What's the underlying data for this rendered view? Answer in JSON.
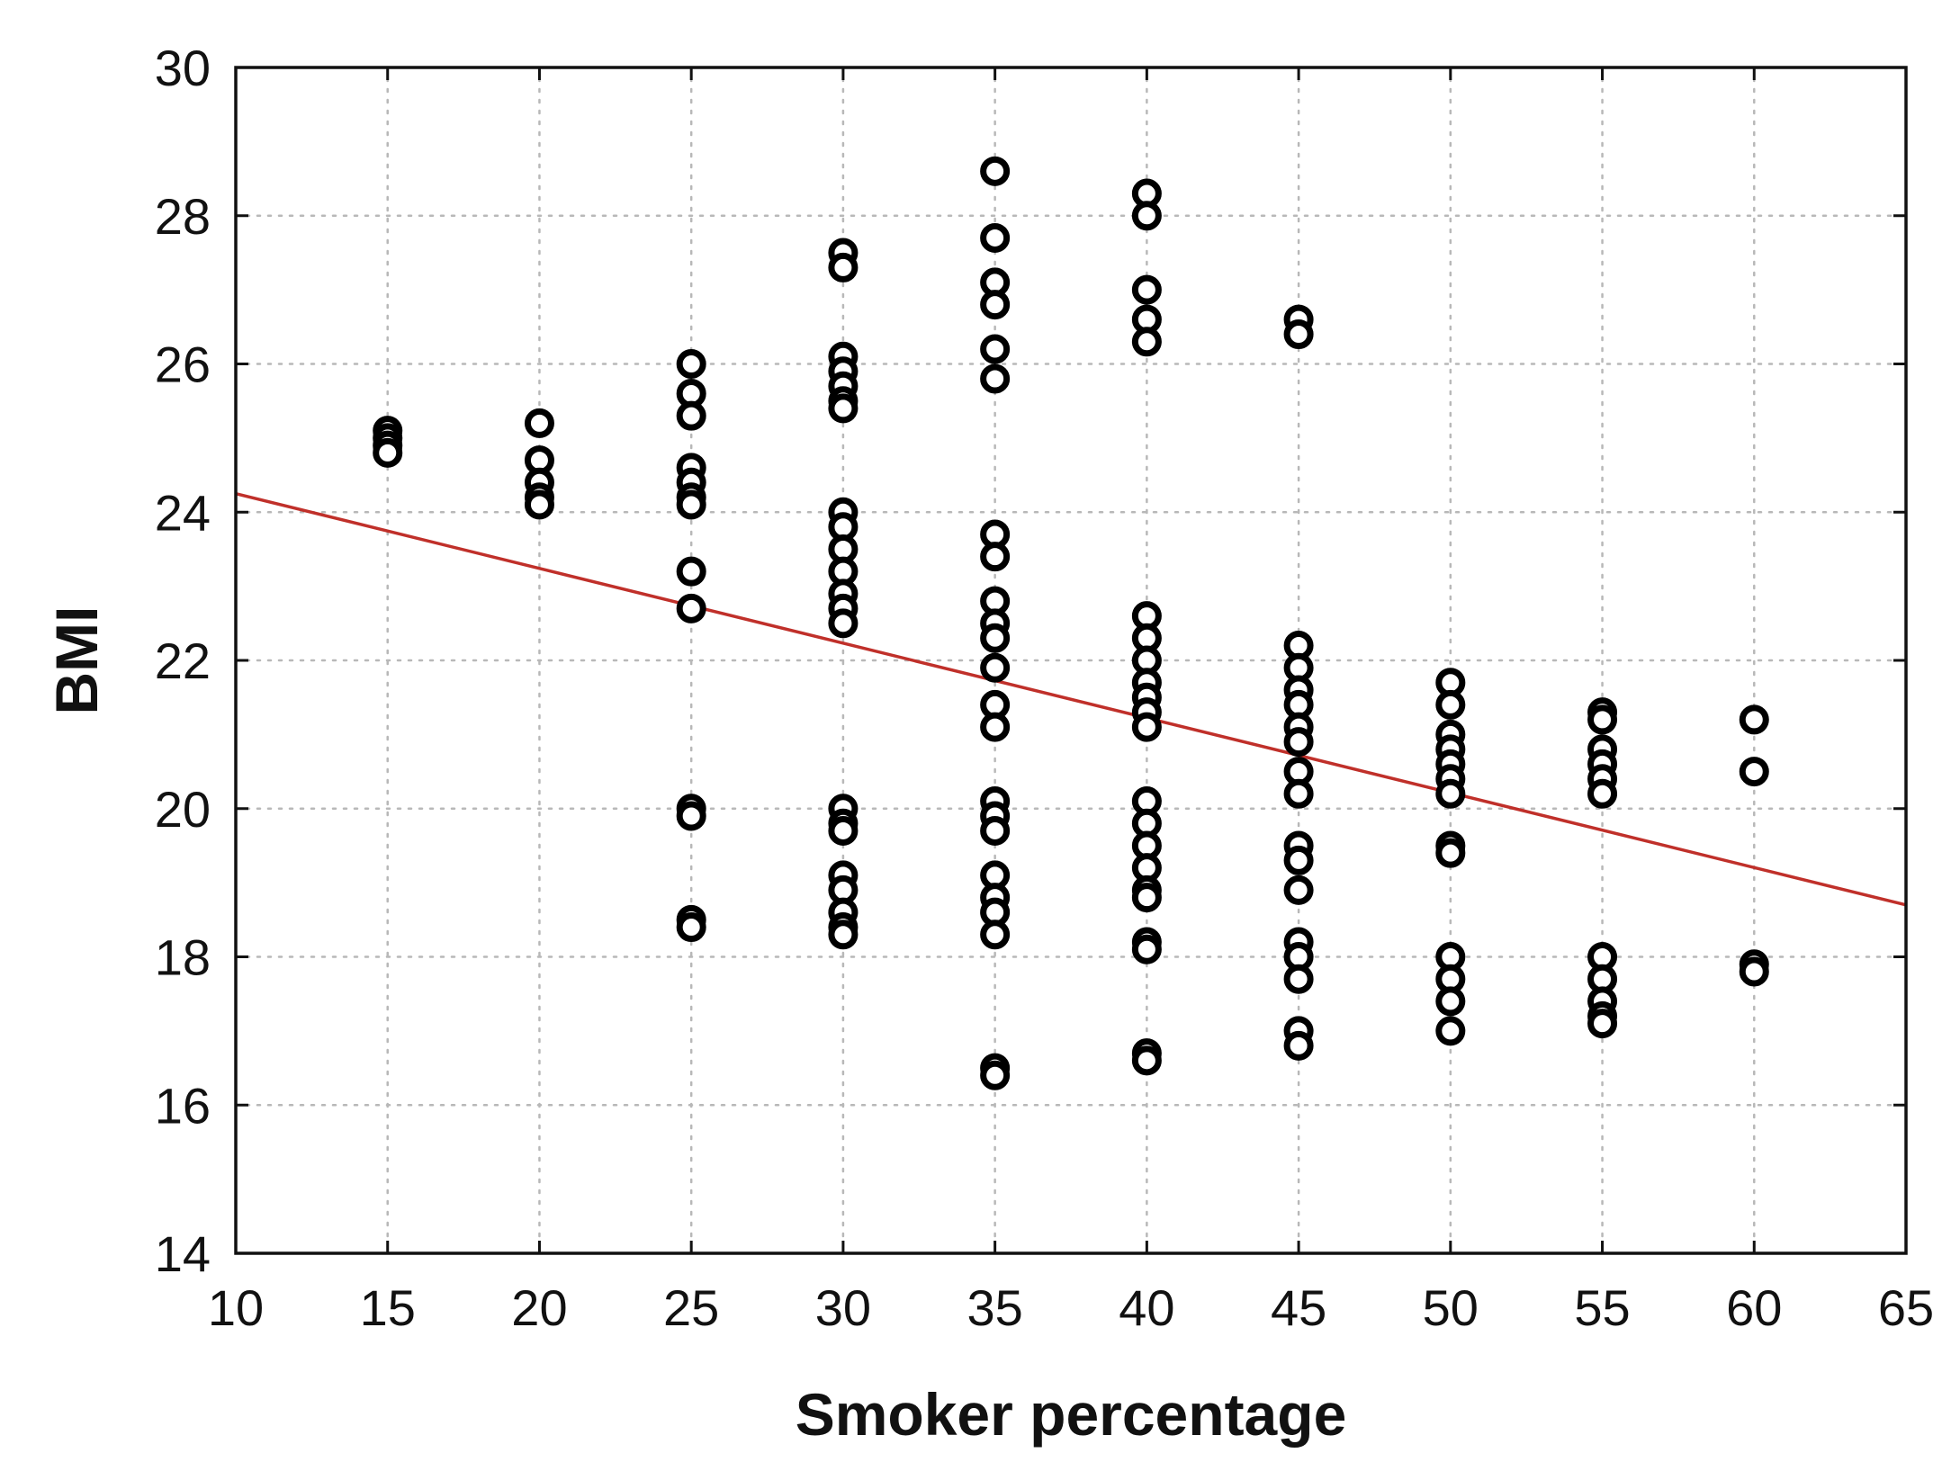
{
  "chart_data": {
    "type": "scatter",
    "title": "",
    "xlabel": "Smoker percentage",
    "ylabel": "BMI",
    "xlim": [
      10,
      65
    ],
    "ylim": [
      14,
      30
    ],
    "xticks": [
      10,
      15,
      20,
      25,
      30,
      35,
      40,
      45,
      50,
      55,
      60,
      65
    ],
    "yticks": [
      14,
      16,
      18,
      20,
      22,
      24,
      26,
      28,
      30
    ],
    "grid": true,
    "colors": {
      "points": "#000000",
      "fit_line": "#c0302a"
    },
    "fit_line": {
      "x": [
        10,
        65
      ],
      "y": [
        24.25,
        18.7
      ]
    },
    "series": [
      {
        "points": [
          [
            15,
            25.1
          ],
          [
            15,
            25.0
          ],
          [
            15,
            24.9
          ],
          [
            15,
            24.8
          ],
          [
            20,
            25.2
          ],
          [
            20,
            24.7
          ],
          [
            20,
            24.4
          ],
          [
            20,
            24.2
          ],
          [
            20,
            24.1
          ],
          [
            25,
            26.0
          ],
          [
            25,
            25.6
          ],
          [
            25,
            25.3
          ],
          [
            25,
            24.6
          ],
          [
            25,
            24.4
          ],
          [
            25,
            24.2
          ],
          [
            25,
            24.1
          ],
          [
            25,
            23.2
          ],
          [
            25,
            22.7
          ],
          [
            25,
            20.0
          ],
          [
            25,
            19.9
          ],
          [
            25,
            18.5
          ],
          [
            25,
            18.4
          ],
          [
            30,
            27.5
          ],
          [
            30,
            27.3
          ],
          [
            30,
            26.1
          ],
          [
            30,
            25.9
          ],
          [
            30,
            25.7
          ],
          [
            30,
            25.5
          ],
          [
            30,
            25.4
          ],
          [
            30,
            24.0
          ],
          [
            30,
            23.8
          ],
          [
            30,
            23.5
          ],
          [
            30,
            23.2
          ],
          [
            30,
            22.9
          ],
          [
            30,
            22.7
          ],
          [
            30,
            22.5
          ],
          [
            30,
            20.0
          ],
          [
            30,
            19.8
          ],
          [
            30,
            19.7
          ],
          [
            30,
            19.1
          ],
          [
            30,
            18.9
          ],
          [
            30,
            18.6
          ],
          [
            30,
            18.4
          ],
          [
            30,
            18.3
          ],
          [
            35,
            28.6
          ],
          [
            35,
            27.7
          ],
          [
            35,
            27.1
          ],
          [
            35,
            26.8
          ],
          [
            35,
            26.2
          ],
          [
            35,
            25.8
          ],
          [
            35,
            23.7
          ],
          [
            35,
            23.4
          ],
          [
            35,
            22.8
          ],
          [
            35,
            22.5
          ],
          [
            35,
            22.3
          ],
          [
            35,
            21.9
          ],
          [
            35,
            21.4
          ],
          [
            35,
            21.1
          ],
          [
            35,
            20.1
          ],
          [
            35,
            19.9
          ],
          [
            35,
            19.7
          ],
          [
            35,
            19.1
          ],
          [
            35,
            18.8
          ],
          [
            35,
            18.6
          ],
          [
            35,
            18.3
          ],
          [
            35,
            16.5
          ],
          [
            35,
            16.4
          ],
          [
            40,
            28.3
          ],
          [
            40,
            28.0
          ],
          [
            40,
            27.0
          ],
          [
            40,
            26.6
          ],
          [
            40,
            26.3
          ],
          [
            40,
            22.6
          ],
          [
            40,
            22.3
          ],
          [
            40,
            22.0
          ],
          [
            40,
            21.7
          ],
          [
            40,
            21.5
          ],
          [
            40,
            21.3
          ],
          [
            40,
            21.1
          ],
          [
            40,
            20.1
          ],
          [
            40,
            19.8
          ],
          [
            40,
            19.5
          ],
          [
            40,
            19.2
          ],
          [
            40,
            18.9
          ],
          [
            40,
            18.8
          ],
          [
            40,
            18.2
          ],
          [
            40,
            18.1
          ],
          [
            40,
            16.7
          ],
          [
            40,
            16.6
          ],
          [
            45,
            26.6
          ],
          [
            45,
            26.4
          ],
          [
            45,
            22.2
          ],
          [
            45,
            21.9
          ],
          [
            45,
            21.6
          ],
          [
            45,
            21.4
          ],
          [
            45,
            21.1
          ],
          [
            45,
            20.9
          ],
          [
            45,
            20.5
          ],
          [
            45,
            20.2
          ],
          [
            45,
            19.5
          ],
          [
            45,
            19.3
          ],
          [
            45,
            18.9
          ],
          [
            45,
            18.2
          ],
          [
            45,
            18.0
          ],
          [
            45,
            17.7
          ],
          [
            45,
            17.0
          ],
          [
            45,
            16.8
          ],
          [
            50,
            21.7
          ],
          [
            50,
            21.4
          ],
          [
            50,
            21.0
          ],
          [
            50,
            20.8
          ],
          [
            50,
            20.6
          ],
          [
            50,
            20.4
          ],
          [
            50,
            20.2
          ],
          [
            50,
            19.5
          ],
          [
            50,
            19.4
          ],
          [
            50,
            18.0
          ],
          [
            50,
            17.7
          ],
          [
            50,
            17.4
          ],
          [
            50,
            17.0
          ],
          [
            55,
            21.3
          ],
          [
            55,
            21.2
          ],
          [
            55,
            20.8
          ],
          [
            55,
            20.6
          ],
          [
            55,
            20.4
          ],
          [
            55,
            20.2
          ],
          [
            55,
            18.0
          ],
          [
            55,
            17.7
          ],
          [
            55,
            17.4
          ],
          [
            55,
            17.2
          ],
          [
            55,
            17.1
          ],
          [
            60,
            21.2
          ],
          [
            60,
            20.5
          ],
          [
            60,
            17.9
          ],
          [
            60,
            17.8
          ]
        ]
      }
    ]
  }
}
